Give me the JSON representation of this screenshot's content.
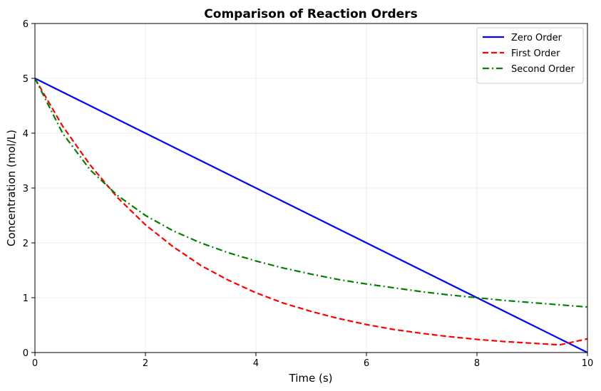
{
  "chart_data": {
    "type": "line",
    "title": "Comparison of Reaction Orders",
    "xlabel": "Time (s)",
    "ylabel": "Concentration (mol/L)",
    "xlim": [
      0,
      10
    ],
    "ylim": [
      0,
      6
    ],
    "xticks": [
      "0",
      "2",
      "4",
      "6",
      "8",
      "10"
    ],
    "yticks": [
      "0",
      "1",
      "2",
      "3",
      "4",
      "5",
      "6"
    ],
    "grid": true,
    "legend_position": "top-right",
    "x": [
      0,
      0.5,
      1,
      1.5,
      2,
      2.5,
      3,
      3.5,
      4,
      4.5,
      5,
      5.5,
      6,
      6.5,
      7,
      7.5,
      8,
      8.5,
      9,
      9.5,
      10
    ],
    "series": [
      {
        "name": "Zero Order",
        "color": "#0000ff",
        "style": "solid",
        "values": [
          5.0,
          4.75,
          4.5,
          4.25,
          4.0,
          3.75,
          3.5,
          3.25,
          3.0,
          2.75,
          2.5,
          2.25,
          2.0,
          1.75,
          1.5,
          1.25,
          1.0,
          0.75,
          0.5,
          0.25,
          0.0
        ]
      },
      {
        "name": "First Order",
        "color": "#ff0000",
        "style": "dashed",
        "values": [
          5.0,
          4.13,
          3.42,
          2.82,
          2.33,
          1.93,
          1.59,
          1.32,
          1.09,
          0.9,
          0.75,
          0.62,
          0.51,
          0.42,
          0.35,
          0.29,
          0.24,
          0.2,
          0.17,
          0.14,
          0.25
        ]
      },
      {
        "name": "Second Order",
        "color": "#008000",
        "style": "dashdot",
        "values": [
          5.0,
          4.0,
          3.33,
          2.86,
          2.5,
          2.22,
          2.0,
          1.82,
          1.67,
          1.54,
          1.43,
          1.33,
          1.25,
          1.18,
          1.11,
          1.05,
          1.0,
          0.95,
          0.91,
          0.87,
          0.83
        ]
      }
    ]
  }
}
